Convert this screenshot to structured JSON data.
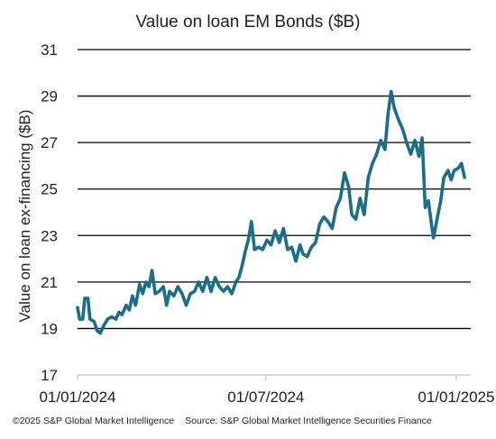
{
  "chart_data": {
    "type": "line",
    "title": "Value on loan EM Bonds ($B)",
    "ylabel": "Value on loan ex-financing ($B)",
    "xlabel": "",
    "ylim": [
      17,
      31
    ],
    "yticks": [
      17,
      19,
      21,
      23,
      25,
      27,
      29,
      31
    ],
    "x_range": [
      "2024-01-01",
      "2025-01-15"
    ],
    "xticks": [
      {
        "date": "2024-01-01",
        "label": "01/01/2024"
      },
      {
        "date": "2024-07-01",
        "label": "01/07/2024"
      },
      {
        "date": "2025-01-01",
        "label": "01/01/2025"
      }
    ],
    "grid": {
      "horizontal": true,
      "vertical": false
    },
    "legend": "none",
    "line_color": "#1a6e8a",
    "series": [
      {
        "points": [
          [
            "2024-01-01",
            19.9
          ],
          [
            "2024-01-03",
            19.4
          ],
          [
            "2024-01-06",
            19.4
          ],
          [
            "2024-01-08",
            20.3
          ],
          [
            "2024-01-11",
            20.3
          ],
          [
            "2024-01-13",
            19.4
          ],
          [
            "2024-01-17",
            19.3
          ],
          [
            "2024-01-20",
            18.9
          ],
          [
            "2024-01-23",
            18.8
          ],
          [
            "2024-01-26",
            19.1
          ],
          [
            "2024-01-30",
            19.4
          ],
          [
            "2024-02-03",
            19.5
          ],
          [
            "2024-02-07",
            19.4
          ],
          [
            "2024-02-10",
            19.7
          ],
          [
            "2024-02-13",
            19.6
          ],
          [
            "2024-02-17",
            20.0
          ],
          [
            "2024-02-20",
            19.8
          ],
          [
            "2024-02-23",
            20.4
          ],
          [
            "2024-02-26",
            20.0
          ],
          [
            "2024-03-01",
            20.9
          ],
          [
            "2024-03-04",
            20.5
          ],
          [
            "2024-03-07",
            21.0
          ],
          [
            "2024-03-10",
            20.8
          ],
          [
            "2024-03-13",
            21.5
          ],
          [
            "2024-03-16",
            20.5
          ],
          [
            "2024-03-20",
            20.6
          ],
          [
            "2024-03-24",
            20.8
          ],
          [
            "2024-03-27",
            20.0
          ],
          [
            "2024-03-30",
            20.6
          ],
          [
            "2024-04-03",
            20.4
          ],
          [
            "2024-04-07",
            20.8
          ],
          [
            "2024-04-11",
            20.5
          ],
          [
            "2024-04-15",
            20.0
          ],
          [
            "2024-04-19",
            20.5
          ],
          [
            "2024-04-23",
            20.6
          ],
          [
            "2024-04-27",
            21.0
          ],
          [
            "2024-05-01",
            20.6
          ],
          [
            "2024-05-05",
            21.2
          ],
          [
            "2024-05-09",
            20.6
          ],
          [
            "2024-05-13",
            21.2
          ],
          [
            "2024-05-17",
            20.8
          ],
          [
            "2024-05-21",
            20.6
          ],
          [
            "2024-05-25",
            20.8
          ],
          [
            "2024-05-29",
            20.5
          ],
          [
            "2024-06-02",
            21.0
          ],
          [
            "2024-06-05",
            21.2
          ],
          [
            "2024-06-08",
            21.7
          ],
          [
            "2024-06-11",
            22.3
          ],
          [
            "2024-06-14",
            22.8
          ],
          [
            "2024-06-17",
            23.6
          ],
          [
            "2024-06-20",
            22.4
          ],
          [
            "2024-06-24",
            22.5
          ],
          [
            "2024-06-28",
            22.4
          ],
          [
            "2024-07-02",
            22.8
          ],
          [
            "2024-07-06",
            22.6
          ],
          [
            "2024-07-10",
            23.2
          ],
          [
            "2024-07-14",
            22.7
          ],
          [
            "2024-07-18",
            23.3
          ],
          [
            "2024-07-22",
            22.4
          ],
          [
            "2024-07-26",
            22.5
          ],
          [
            "2024-07-30",
            21.9
          ],
          [
            "2024-08-03",
            22.6
          ],
          [
            "2024-08-06",
            22.2
          ],
          [
            "2024-08-10",
            22.1
          ],
          [
            "2024-08-14",
            22.5
          ],
          [
            "2024-08-18",
            22.7
          ],
          [
            "2024-08-22",
            23.5
          ],
          [
            "2024-08-26",
            23.8
          ],
          [
            "2024-08-30",
            23.6
          ],
          [
            "2024-09-03",
            23.3
          ],
          [
            "2024-09-07",
            24.2
          ],
          [
            "2024-09-11",
            24.6
          ],
          [
            "2024-09-15",
            25.7
          ],
          [
            "2024-09-19",
            25.1
          ],
          [
            "2024-09-22",
            23.9
          ],
          [
            "2024-09-26",
            23.7
          ],
          [
            "2024-09-30",
            24.6
          ],
          [
            "2024-10-04",
            23.9
          ],
          [
            "2024-10-08",
            25.5
          ],
          [
            "2024-10-12",
            26.1
          ],
          [
            "2024-10-16",
            26.5
          ],
          [
            "2024-10-20",
            27.1
          ],
          [
            "2024-10-24",
            26.7
          ],
          [
            "2024-10-27",
            28.2
          ],
          [
            "2024-10-30",
            29.2
          ],
          [
            "2024-11-02",
            28.5
          ],
          [
            "2024-11-06",
            28.0
          ],
          [
            "2024-11-10",
            27.6
          ],
          [
            "2024-11-14",
            27.0
          ],
          [
            "2024-11-18",
            26.5
          ],
          [
            "2024-11-22",
            27.1
          ],
          [
            "2024-11-26",
            26.4
          ],
          [
            "2024-11-29",
            27.2
          ],
          [
            "2024-12-02",
            24.2
          ],
          [
            "2024-12-05",
            24.5
          ],
          [
            "2024-12-08",
            23.5
          ],
          [
            "2024-12-10",
            22.9
          ],
          [
            "2024-12-13",
            23.6
          ],
          [
            "2024-12-17",
            24.5
          ],
          [
            "2024-12-20",
            25.5
          ],
          [
            "2024-12-24",
            25.8
          ],
          [
            "2024-12-27",
            25.4
          ],
          [
            "2024-12-30",
            25.8
          ],
          [
            "2025-01-03",
            25.9
          ],
          [
            "2025-01-06",
            26.1
          ],
          [
            "2025-01-09",
            25.5
          ]
        ]
      }
    ]
  },
  "footer": {
    "copyright": "©2025 S&P Global Market Intelligence",
    "source": "Source: S&P Global Market Intelligence Securities Finance"
  }
}
